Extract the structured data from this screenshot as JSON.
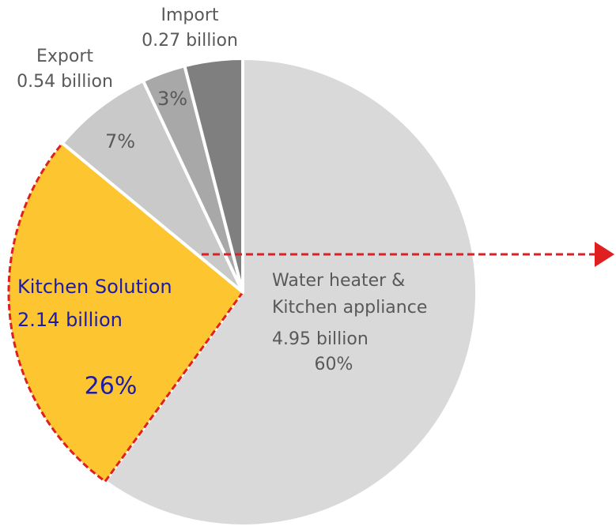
{
  "chart_data": {
    "type": "pie",
    "categories": [
      "Water heater &\nKitchen appliance",
      "Kitchen Solution",
      "Export",
      "Import",
      null
    ],
    "amounts": [
      "4.95 billion",
      "2.14 billion",
      "0.54 billion",
      "0.27 billion",
      null
    ],
    "values": [
      60,
      26,
      7,
      3,
      4
    ],
    "value_labels": [
      "60%",
      "26%",
      "7%",
      "3%",
      null
    ],
    "colors": [
      "#d9d9d9",
      "#fdc52f",
      "#c9c9c9",
      "#a8a8a8",
      "#7f7f7f"
    ],
    "highlight": 1
  }
}
